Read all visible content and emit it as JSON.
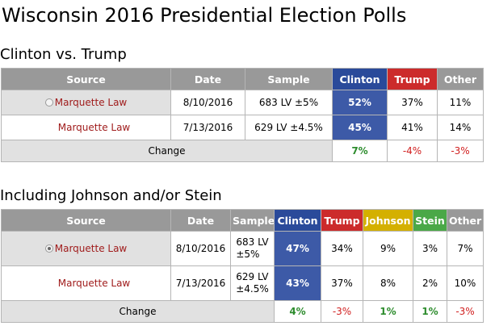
{
  "page": {
    "title": "Wisconsin 2016 Presidential Election Polls"
  },
  "table1": {
    "title": "Clinton vs. Trump",
    "headers": [
      "Source",
      "Date",
      "Sample",
      "Clinton",
      "Trump",
      "Other"
    ],
    "rows": [
      {
        "source": "Marquette Law",
        "date": "8/10/2016",
        "sample": "683 LV ±5%",
        "clinton": "52%",
        "trump": "37%",
        "other": "11%"
      },
      {
        "source": "Marquette Law",
        "date": "7/13/2016",
        "sample": "629 LV ±4.5%",
        "clinton": "45%",
        "trump": "41%",
        "other": "14%"
      }
    ],
    "change": {
      "label": "Change",
      "clinton": "7%",
      "trump": "-4%",
      "other": "-3%"
    }
  },
  "table2": {
    "title": "Including Johnson and/or Stein",
    "headers": [
      "Source",
      "Date",
      "Sample",
      "Clinton",
      "Trump",
      "Johnson",
      "Stein",
      "Other"
    ],
    "rows": [
      {
        "source": "Marquette Law",
        "date": "8/10/2016",
        "sample_line1": "683 LV",
        "sample_line2": "±5%",
        "clinton": "47%",
        "trump": "34%",
        "johnson": "9%",
        "stein": "3%",
        "other": "7%"
      },
      {
        "source": "Marquette Law",
        "date": "7/13/2016",
        "sample_line1": "629 LV",
        "sample_line2": "±4.5%",
        "clinton": "43%",
        "trump": "37%",
        "johnson": "8%",
        "stein": "2%",
        "other": "10%"
      }
    ],
    "change": {
      "label": "Change",
      "clinton": "4%",
      "trump": "-3%",
      "johnson": "1%",
      "stein": "1%",
      "other": "-3%"
    }
  },
  "colors": {
    "clinton": "#3d5aa7",
    "trump": "#cc2b2b",
    "johnson": "#d4b000",
    "stein": "#4aa847",
    "header_gray": "#999999",
    "positive_change": "#2d8c2d",
    "negative_change": "#d11f1f",
    "source_link": "#a01c1c"
  },
  "icons": {
    "row_selector": "radio-button-icon"
  }
}
